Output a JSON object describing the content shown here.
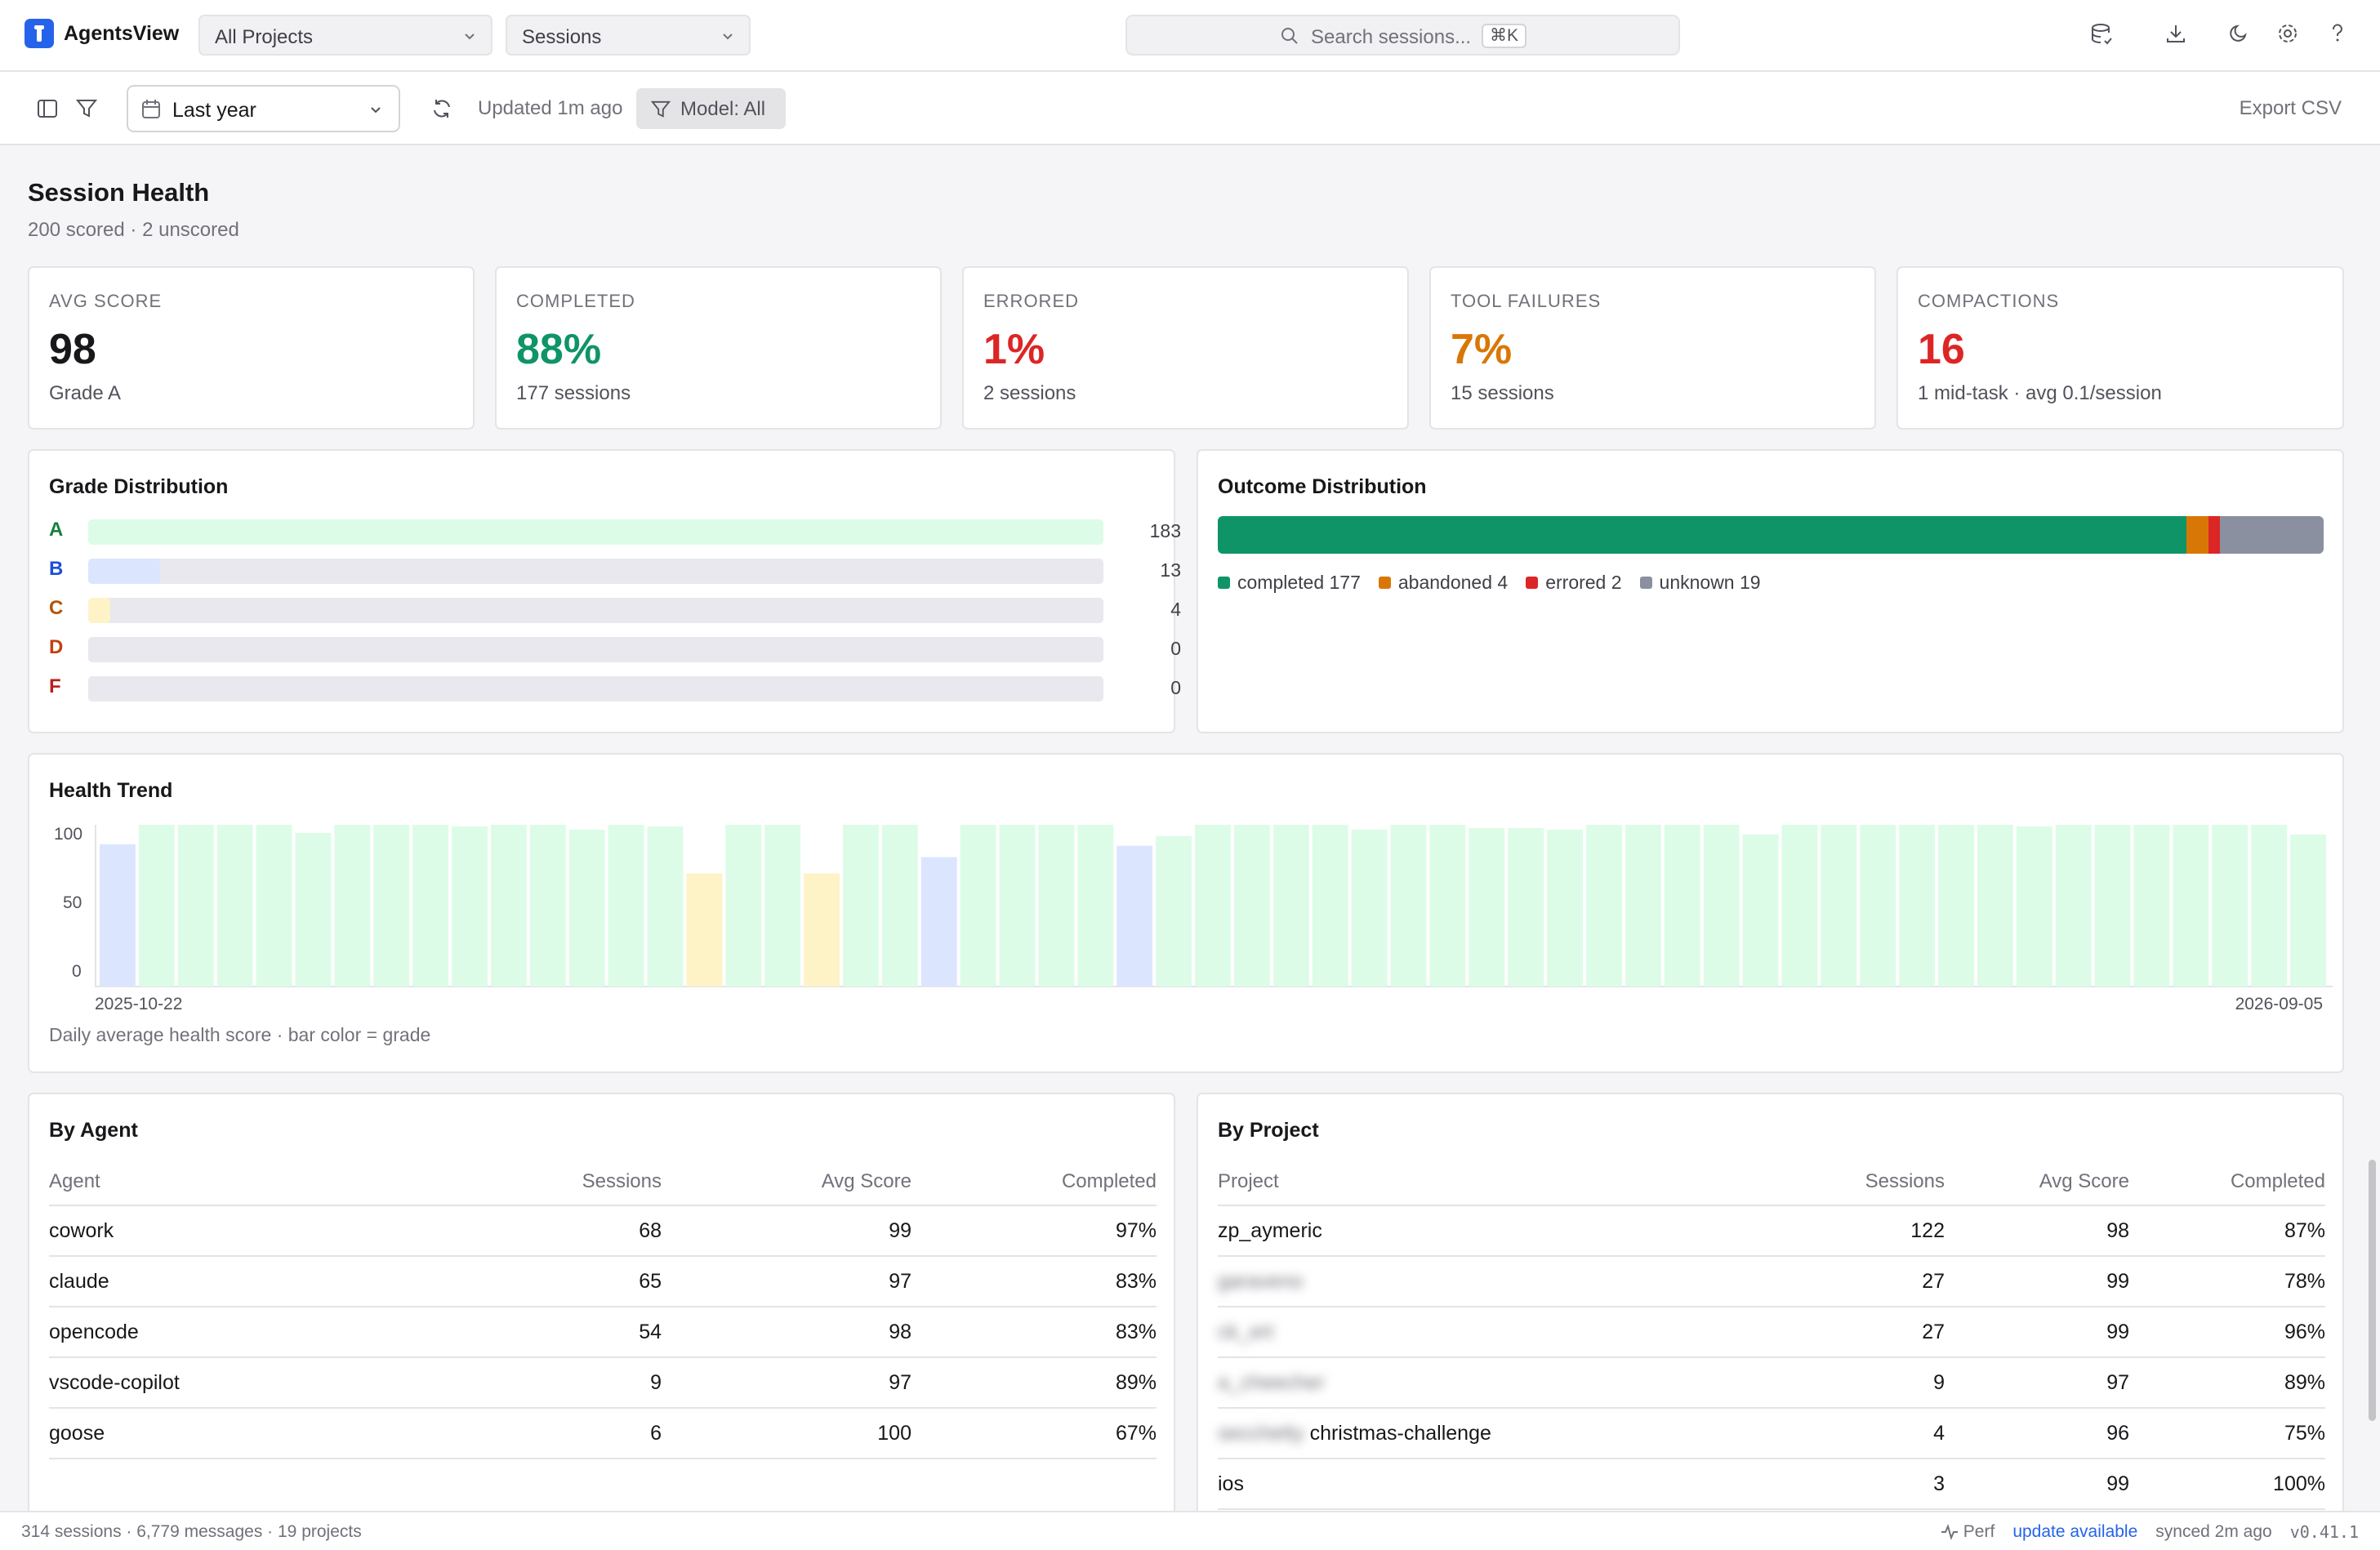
{
  "app": {
    "title": "AgentsView"
  },
  "topbar": {
    "project_select": "All Projects",
    "view_select": "Sessions",
    "search": {
      "placeholder": "Search sessions...",
      "shortcut": "⌘K"
    }
  },
  "toolbar": {
    "date_range": "Last year",
    "updated": "Updated 1m ago",
    "model_filter": "Model: All",
    "export": "Export CSV"
  },
  "page": {
    "title": "Session Health",
    "subtitle": "200 scored · 2 unscored"
  },
  "stats": [
    {
      "label": "AVG SCORE",
      "value": "98",
      "sub": "Grade A",
      "color": "#18181b"
    },
    {
      "label": "COMPLETED",
      "value": "88%",
      "sub": "177 sessions",
      "color": "#0f9467"
    },
    {
      "label": "ERRORED",
      "value": "1%",
      "sub": "2 sessions",
      "color": "#dc2626"
    },
    {
      "label": "TOOL FAILURES",
      "value": "7%",
      "sub": "15 sessions",
      "color": "#d97706"
    },
    {
      "label": "COMPACTIONS",
      "value": "16",
      "sub": "1 mid-task · avg 0.1/session",
      "color": "#dc2626"
    }
  ],
  "grade_distribution": {
    "title": "Grade Distribution",
    "max": 183,
    "grades": [
      {
        "letter": "A",
        "count": 183,
        "count_label": "183",
        "letter_color": "#15803d",
        "fill": "#dcfce7"
      },
      {
        "letter": "B",
        "count": 13,
        "count_label": "13",
        "letter_color": "#1d4ed8",
        "fill": "#dbe6fe"
      },
      {
        "letter": "C",
        "count": 4,
        "count_label": "4",
        "letter_color": "#b45309",
        "fill": "#fef3c7"
      },
      {
        "letter": "D",
        "count": 0,
        "count_label": "0",
        "letter_color": "#c2410c",
        "fill": "#fed7aa"
      },
      {
        "letter": "F",
        "count": 0,
        "count_label": "0",
        "letter_color": "#b91c1c",
        "fill": "#fecaca"
      }
    ]
  },
  "outcome_distribution": {
    "title": "Outcome Distribution",
    "segments": [
      {
        "name": "completed",
        "count": 177,
        "label": "completed 177",
        "color": "#0f9467"
      },
      {
        "name": "abandoned",
        "count": 4,
        "label": "abandoned 4",
        "color": "#d97706"
      },
      {
        "name": "errored",
        "count": 2,
        "label": "errored 2",
        "color": "#dc2626"
      },
      {
        "name": "unknown",
        "count": 19,
        "label": "unknown 19",
        "color": "#8b90a0"
      }
    ]
  },
  "health_trend": {
    "title": "Health Trend",
    "footnote": "Daily average health score · bar color = grade",
    "chart_data": {
      "type": "bar",
      "x_start_label": "2025-10-22",
      "x_end_label": "2026-09-05",
      "y_ticks": [
        "100",
        "50",
        "0"
      ],
      "ylim": [
        0,
        100
      ],
      "grade_colors": {
        "A": "#dcfce7",
        "B": "#dbe6fe",
        "C": "#fef3c7"
      },
      "values": [
        88,
        100,
        100,
        100,
        100,
        95,
        100,
        100,
        100,
        99,
        100,
        100,
        97,
        100,
        99,
        70,
        100,
        100,
        70,
        100,
        100,
        80,
        100,
        100,
        100,
        100,
        87,
        93,
        100,
        100,
        100,
        100,
        97,
        100,
        100,
        98,
        98,
        97,
        100,
        100,
        100,
        100,
        94,
        100,
        100,
        100,
        100,
        100,
        100,
        99,
        100,
        100,
        100,
        100,
        100,
        100,
        94
      ],
      "grades": [
        "B",
        "A",
        "A",
        "A",
        "A",
        "A",
        "A",
        "A",
        "A",
        "A",
        "A",
        "A",
        "A",
        "A",
        "A",
        "C",
        "A",
        "A",
        "C",
        "A",
        "A",
        "B",
        "A",
        "A",
        "A",
        "A",
        "B",
        "A",
        "A",
        "A",
        "A",
        "A",
        "A",
        "A",
        "A",
        "A",
        "A",
        "A",
        "A",
        "A",
        "A",
        "A",
        "A",
        "A",
        "A",
        "A",
        "A",
        "A",
        "A",
        "A",
        "A",
        "A",
        "A",
        "A",
        "A",
        "A",
        "A"
      ]
    }
  },
  "by_agent": {
    "title": "By Agent",
    "columns": [
      "Agent",
      "Sessions",
      "Avg Score",
      "Completed"
    ],
    "rows": [
      [
        "cowork",
        "68",
        "99",
        "97%"
      ],
      [
        "claude",
        "65",
        "97",
        "83%"
      ],
      [
        "opencode",
        "54",
        "98",
        "83%"
      ],
      [
        "vscode-copilot",
        "9",
        "97",
        "89%"
      ],
      [
        "goose",
        "6",
        "100",
        "67%"
      ]
    ]
  },
  "by_project": {
    "title": "By Project",
    "columns": [
      "Project",
      "Sessions",
      "Avg Score",
      "Completed"
    ],
    "rows": [
      {
        "prefix": "",
        "name": "zp_aymeric",
        "blur": false,
        "sessions": "122",
        "avg": "98",
        "completed": "87%"
      },
      {
        "prefix": "",
        "name": "garaveno",
        "blur": true,
        "sessions": "27",
        "avg": "99",
        "completed": "78%"
      },
      {
        "prefix": "",
        "name": "ck_ert",
        "blur": true,
        "sessions": "27",
        "avg": "99",
        "completed": "96%"
      },
      {
        "prefix": "",
        "name": "a_cheecher",
        "blur": true,
        "sessions": "9",
        "avg": "97",
        "completed": "89%"
      },
      {
        "prefix": "secchetty",
        "name": "christmas-challenge",
        "blur": false,
        "sessions": "4",
        "avg": "96",
        "completed": "75%"
      },
      {
        "prefix": "",
        "name": "ios",
        "blur": false,
        "sessions": "3",
        "avg": "99",
        "completed": "100%"
      }
    ]
  },
  "statusbar": {
    "counts": "314 sessions · 6,779 messages · 19 projects",
    "perf": "Perf",
    "update": "update available",
    "synced": "synced 2m ago",
    "version": "v0.41.1"
  }
}
